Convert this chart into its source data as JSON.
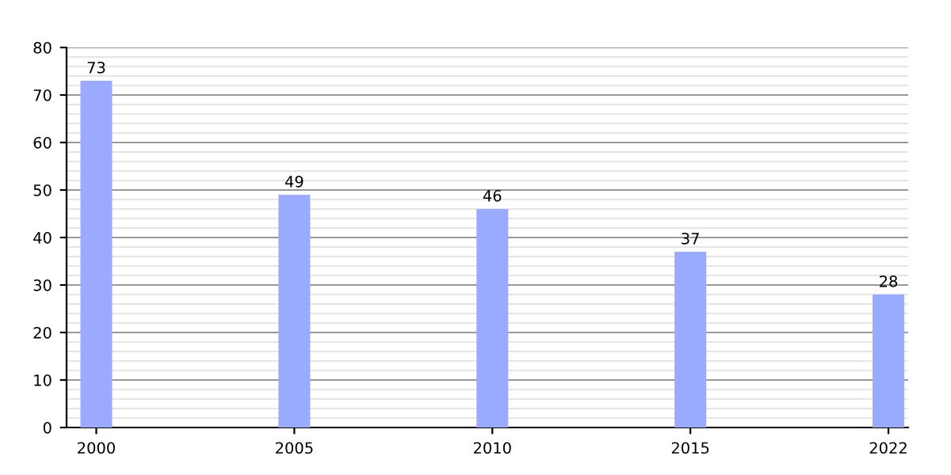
{
  "chart_data": {
    "type": "bar",
    "categories": [
      "2000",
      "2005",
      "2010",
      "2015",
      "2022"
    ],
    "values": [
      73,
      49,
      46,
      37,
      28
    ],
    "color": "#99aaff",
    "ylim": [
      0,
      80
    ],
    "yticks": [
      0,
      10,
      20,
      30,
      40,
      50,
      60,
      70,
      80
    ],
    "grid": "y",
    "data_labels": true
  }
}
